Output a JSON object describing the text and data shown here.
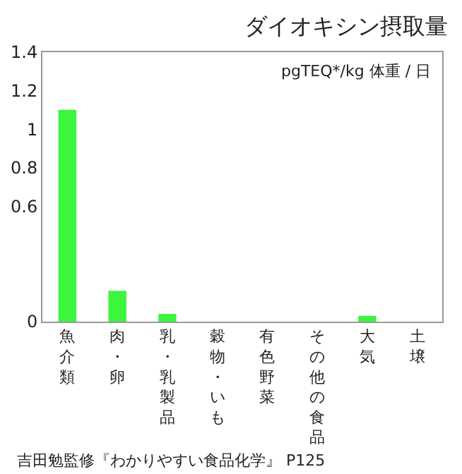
{
  "chart_data": {
    "type": "bar",
    "title": "ダイオキシン摂取量",
    "categories": [
      "魚介類",
      "肉・卵",
      "乳・乳製品",
      "穀物・いも",
      "有色野菜",
      "その他の食品",
      "大気",
      "土壌"
    ],
    "values": [
      1.1,
      0.16,
      0.04,
      0,
      0,
      0,
      0.03,
      0
    ],
    "color": "#3cf53c",
    "ylim": [
      0,
      1.4
    ],
    "yticks": [
      0,
      0.6,
      0.8,
      1,
      1.2,
      1.4
    ],
    "grid": false,
    "legend": false,
    "annotations": [
      "pgTEQ*/kg 体重 / 日",
      "吉田勉監修『わかりやすい食品化学』 P125"
    ]
  }
}
